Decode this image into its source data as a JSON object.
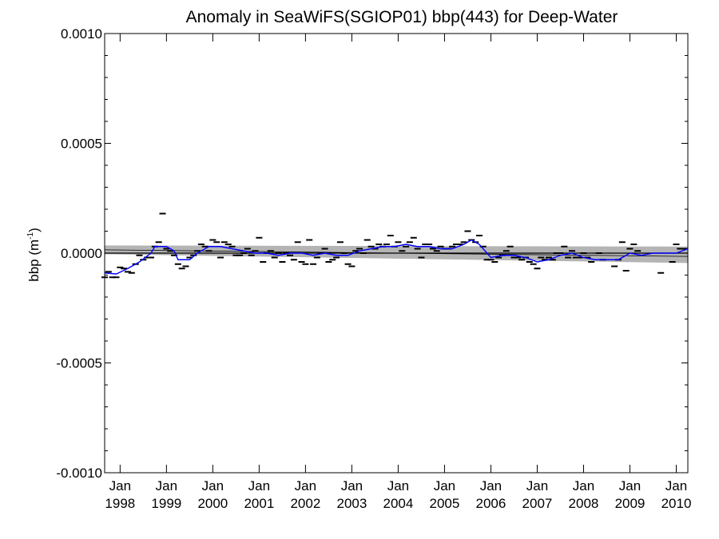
{
  "chart_data": {
    "type": "scatter",
    "title": "Anomaly in SeaWiFS(SGIOP01) bbp(443) for Deep-Water",
    "xlabel": "",
    "ylabel": {
      "base": "bbp (m",
      "sup": "-1",
      "close": ")"
    },
    "ylim": [
      -0.001,
      0.001
    ],
    "xlim": [
      "1997-09",
      "2010-04"
    ],
    "y_ticks": [
      {
        "value": -0.001,
        "label": "-0.0010"
      },
      {
        "value": -0.0005,
        "label": "-0.0005"
      },
      {
        "value": 0.0,
        "label": "0.0000"
      },
      {
        "value": 0.0005,
        "label": "0.0005"
      },
      {
        "value": 0.001,
        "label": "0.0010"
      }
    ],
    "x_ticks": [
      {
        "date": "1998-01",
        "line1": "Jan",
        "line2": "1998"
      },
      {
        "date": "1999-01",
        "line1": "Jan",
        "line2": "1999"
      },
      {
        "date": "2000-01",
        "line1": "Jan",
        "line2": "2000"
      },
      {
        "date": "2001-01",
        "line1": "Jan",
        "line2": "2001"
      },
      {
        "date": "2002-01",
        "line1": "Jan",
        "line2": "2002"
      },
      {
        "date": "2003-01",
        "line1": "Jan",
        "line2": "2003"
      },
      {
        "date": "2004-01",
        "line1": "Jan",
        "line2": "2004"
      },
      {
        "date": "2005-01",
        "line1": "Jan",
        "line2": "2005"
      },
      {
        "date": "2006-01",
        "line1": "Jan",
        "line2": "2006"
      },
      {
        "date": "2007-01",
        "line1": "Jan",
        "line2": "2007"
      },
      {
        "date": "2008-01",
        "line1": "Jan",
        "line2": "2008"
      },
      {
        "date": "2009-01",
        "line1": "Jan",
        "line2": "2009"
      },
      {
        "date": "2010-01",
        "line1": "Jan",
        "line2": "2010"
      }
    ],
    "grid": false,
    "legend": "none",
    "colors": {
      "markers": "#000000",
      "smooth": "#0000ff",
      "band": "#b4b4b4",
      "trend": "#000000",
      "zero": "#000000"
    },
    "monthly_anomalies": [
      {
        "date": "1997-09",
        "y": -0.00011
      },
      {
        "date": "1997-10",
        "y": -8.5e-05
      },
      {
        "date": "1997-11",
        "y": -0.00011
      },
      {
        "date": "1997-12",
        "y": -0.00011
      },
      {
        "date": "1998-01",
        "y": -6.5e-05
      },
      {
        "date": "1998-02",
        "y": -7e-05
      },
      {
        "date": "1998-03",
        "y": -8.5e-05
      },
      {
        "date": "1998-04",
        "y": -9e-05
      },
      {
        "date": "1998-05",
        "y": -5e-05
      },
      {
        "date": "1998-06",
        "y": -1e-05
      },
      {
        "date": "1998-07",
        "y": -3e-05
      },
      {
        "date": "1998-08",
        "y": -2e-05
      },
      {
        "date": "1998-09",
        "y": -2e-05
      },
      {
        "date": "1998-10",
        "y": 3e-05
      },
      {
        "date": "1998-11",
        "y": 5e-05
      },
      {
        "date": "1998-12",
        "y": 0.00018
      },
      {
        "date": "1999-01",
        "y": 2e-05
      },
      {
        "date": "1999-02",
        "y": 1e-05
      },
      {
        "date": "1999-03",
        "y": -1e-05
      },
      {
        "date": "1999-04",
        "y": -5e-05
      },
      {
        "date": "1999-05",
        "y": -7e-05
      },
      {
        "date": "1999-06",
        "y": -6e-05
      },
      {
        "date": "1999-07",
        "y": -2e-05
      },
      {
        "date": "1999-08",
        "y": -1e-05
      },
      {
        "date": "1999-09",
        "y": 1e-05
      },
      {
        "date": "1999-10",
        "y": 4e-05
      },
      {
        "date": "1999-11",
        "y": 3e-05
      },
      {
        "date": "1999-12",
        "y": 1e-05
      },
      {
        "date": "2000-01",
        "y": 6e-05
      },
      {
        "date": "2000-02",
        "y": 5e-05
      },
      {
        "date": "2000-03",
        "y": -2e-05
      },
      {
        "date": "2000-04",
        "y": 5e-05
      },
      {
        "date": "2000-05",
        "y": 4e-05
      },
      {
        "date": "2000-06",
        "y": 3e-05
      },
      {
        "date": "2000-07",
        "y": -1e-05
      },
      {
        "date": "2000-08",
        "y": -1e-05
      },
      {
        "date": "2000-09",
        "y": 0.0
      },
      {
        "date": "2000-10",
        "y": 2e-05
      },
      {
        "date": "2000-11",
        "y": -1e-05
      },
      {
        "date": "2000-12",
        "y": 1e-05
      },
      {
        "date": "2001-01",
        "y": 7e-05
      },
      {
        "date": "2001-02",
        "y": -4e-05
      },
      {
        "date": "2001-03",
        "y": 0.0
      },
      {
        "date": "2001-04",
        "y": 1e-05
      },
      {
        "date": "2001-05",
        "y": -2e-05
      },
      {
        "date": "2001-06",
        "y": 0.0
      },
      {
        "date": "2001-07",
        "y": -4e-05
      },
      {
        "date": "2001-08",
        "y": 0.0
      },
      {
        "date": "2001-09",
        "y": -1e-05
      },
      {
        "date": "2001-10",
        "y": -3e-05
      },
      {
        "date": "2001-11",
        "y": 5e-05
      },
      {
        "date": "2001-12",
        "y": -4e-05
      },
      {
        "date": "2002-01",
        "y": -5e-05
      },
      {
        "date": "2002-02",
        "y": 6e-05
      },
      {
        "date": "2002-03",
        "y": -5e-05
      },
      {
        "date": "2002-04",
        "y": -2e-05
      },
      {
        "date": "2002-05",
        "y": 0.0
      },
      {
        "date": "2002-06",
        "y": 2e-05
      },
      {
        "date": "2002-07",
        "y": -4e-05
      },
      {
        "date": "2002-08",
        "y": -3e-05
      },
      {
        "date": "2002-09",
        "y": -2e-05
      },
      {
        "date": "2002-10",
        "y": 5e-05
      },
      {
        "date": "2002-11",
        "y": 0.0
      },
      {
        "date": "2002-12",
        "y": -5e-05
      },
      {
        "date": "2003-01",
        "y": -6e-05
      },
      {
        "date": "2003-02",
        "y": 1e-05
      },
      {
        "date": "2003-03",
        "y": 2e-05
      },
      {
        "date": "2003-04",
        "y": 0.0
      },
      {
        "date": "2003-05",
        "y": 6e-05
      },
      {
        "date": "2003-06",
        "y": 3e-05
      },
      {
        "date": "2003-07",
        "y": 2e-05
      },
      {
        "date": "2003-08",
        "y": 4e-05
      },
      {
        "date": "2003-09",
        "y": 3e-05
      },
      {
        "date": "2003-10",
        "y": 4e-05
      },
      {
        "date": "2003-11",
        "y": 8e-05
      },
      {
        "date": "2003-12",
        "y": 3e-05
      },
      {
        "date": "2004-01",
        "y": 5e-05
      },
      {
        "date": "2004-02",
        "y": 1e-05
      },
      {
        "date": "2004-03",
        "y": 3e-05
      },
      {
        "date": "2004-04",
        "y": 5e-05
      },
      {
        "date": "2004-05",
        "y": 7e-05
      },
      {
        "date": "2004-06",
        "y": 2e-05
      },
      {
        "date": "2004-07",
        "y": -2e-05
      },
      {
        "date": "2004-08",
        "y": 4e-05
      },
      {
        "date": "2004-09",
        "y": 4e-05
      },
      {
        "date": "2004-10",
        "y": 2e-05
      },
      {
        "date": "2004-11",
        "y": 1e-05
      },
      {
        "date": "2004-12",
        "y": 3e-05
      },
      {
        "date": "2005-01",
        "y": 2e-05
      },
      {
        "date": "2005-02",
        "y": 2e-05
      },
      {
        "date": "2005-03",
        "y": 3e-05
      },
      {
        "date": "2005-04",
        "y": 4e-05
      },
      {
        "date": "2005-05",
        "y": 4e-05
      },
      {
        "date": "2005-06",
        "y": 5e-05
      },
      {
        "date": "2005-07",
        "y": 0.0001
      },
      {
        "date": "2005-08",
        "y": 6e-05
      },
      {
        "date": "2005-09",
        "y": 5e-05
      },
      {
        "date": "2005-10",
        "y": 8e-05
      },
      {
        "date": "2005-11",
        "y": 3e-05
      },
      {
        "date": "2005-12",
        "y": -3e-05
      },
      {
        "date": "2006-01",
        "y": -3e-05
      },
      {
        "date": "2006-02",
        "y": -4e-05
      },
      {
        "date": "2006-03",
        "y": -2e-05
      },
      {
        "date": "2006-04",
        "y": -1e-05
      },
      {
        "date": "2006-05",
        "y": 1e-05
      },
      {
        "date": "2006-06",
        "y": 3e-05
      },
      {
        "date": "2006-07",
        "y": -2e-05
      },
      {
        "date": "2006-08",
        "y": -2e-05
      },
      {
        "date": "2006-09",
        "y": -3e-05
      },
      {
        "date": "2006-10",
        "y": -2e-05
      },
      {
        "date": "2006-11",
        "y": -4e-05
      },
      {
        "date": "2006-12",
        "y": -5e-05
      },
      {
        "date": "2007-01",
        "y": -7e-05
      },
      {
        "date": "2007-02",
        "y": -2e-05
      },
      {
        "date": "2007-03",
        "y": -3e-05
      },
      {
        "date": "2007-04",
        "y": -2e-05
      },
      {
        "date": "2007-05",
        "y": -3e-05
      },
      {
        "date": "2007-06",
        "y": 0.0
      },
      {
        "date": "2007-07",
        "y": 0.0
      },
      {
        "date": "2007-08",
        "y": 3e-05
      },
      {
        "date": "2007-09",
        "y": -2e-05
      },
      {
        "date": "2007-10",
        "y": 1e-05
      },
      {
        "date": "2007-11",
        "y": -2e-05
      },
      {
        "date": "2007-12",
        "y": -2e-05
      },
      {
        "date": "2008-01",
        "y": 0.0
      },
      {
        "date": "2008-02",
        "y": -2e-05
      },
      {
        "date": "2008-03",
        "y": -4e-05
      },
      {
        "date": "2008-05",
        "y": 0.0
      },
      {
        "date": "2008-06",
        "y": -3e-05
      },
      {
        "date": "2008-09",
        "y": -6e-05
      },
      {
        "date": "2008-10",
        "y": -3e-05
      },
      {
        "date": "2008-11",
        "y": 5e-05
      },
      {
        "date": "2008-12",
        "y": -8e-05
      },
      {
        "date": "2009-01",
        "y": 2e-05
      },
      {
        "date": "2009-02",
        "y": 4e-05
      },
      {
        "date": "2009-03",
        "y": 1e-05
      },
      {
        "date": "2009-09",
        "y": -9e-05
      },
      {
        "date": "2009-12",
        "y": -4e-05
      },
      {
        "date": "2010-01",
        "y": 4e-05
      },
      {
        "date": "2010-02",
        "y": 2e-05
      },
      {
        "date": "2010-03",
        "y": 2e-05
      }
    ],
    "smoothed_series": [
      {
        "date": "1997-09",
        "y": -9e-05
      },
      {
        "date": "1997-12",
        "y": -9.5e-05
      },
      {
        "date": "1998-03",
        "y": -7e-05
      },
      {
        "date": "1998-06",
        "y": -4e-05
      },
      {
        "date": "1998-09",
        "y": 0.0
      },
      {
        "date": "1998-10",
        "y": 3e-05
      },
      {
        "date": "1999-01",
        "y": 3e-05
      },
      {
        "date": "1999-03",
        "y": 1e-05
      },
      {
        "date": "1999-04",
        "y": -3e-05
      },
      {
        "date": "1999-07",
        "y": -3e-05
      },
      {
        "date": "1999-09",
        "y": 0.0
      },
      {
        "date": "1999-12",
        "y": 3e-05
      },
      {
        "date": "2000-03",
        "y": 3e-05
      },
      {
        "date": "2000-06",
        "y": 2e-05
      },
      {
        "date": "2000-09",
        "y": 1e-05
      },
      {
        "date": "2000-12",
        "y": 0.0
      },
      {
        "date": "2001-03",
        "y": 0.0
      },
      {
        "date": "2001-06",
        "y": -1e-05
      },
      {
        "date": "2001-09",
        "y": 0.0
      },
      {
        "date": "2001-12",
        "y": 0.0
      },
      {
        "date": "2002-03",
        "y": -1e-05
      },
      {
        "date": "2002-06",
        "y": 0.0
      },
      {
        "date": "2002-09",
        "y": -1e-05
      },
      {
        "date": "2002-12",
        "y": -1e-05
      },
      {
        "date": "2003-03",
        "y": 1e-05
      },
      {
        "date": "2003-06",
        "y": 2e-05
      },
      {
        "date": "2003-09",
        "y": 3e-05
      },
      {
        "date": "2003-12",
        "y": 3e-05
      },
      {
        "date": "2004-03",
        "y": 4e-05
      },
      {
        "date": "2004-06",
        "y": 3e-05
      },
      {
        "date": "2004-09",
        "y": 3e-05
      },
      {
        "date": "2004-12",
        "y": 2e-05
      },
      {
        "date": "2005-03",
        "y": 2e-05
      },
      {
        "date": "2005-06",
        "y": 4e-05
      },
      {
        "date": "2005-08",
        "y": 6e-05
      },
      {
        "date": "2005-10",
        "y": 4e-05
      },
      {
        "date": "2006-01",
        "y": -2e-05
      },
      {
        "date": "2006-04",
        "y": -1e-05
      },
      {
        "date": "2006-07",
        "y": -1e-05
      },
      {
        "date": "2006-10",
        "y": -2e-05
      },
      {
        "date": "2007-01",
        "y": -4e-05
      },
      {
        "date": "2007-04",
        "y": -3e-05
      },
      {
        "date": "2007-07",
        "y": -1e-05
      },
      {
        "date": "2007-10",
        "y": 0.0
      },
      {
        "date": "2008-01",
        "y": -2e-05
      },
      {
        "date": "2008-04",
        "y": -3e-05
      },
      {
        "date": "2008-07",
        "y": -3e-05
      },
      {
        "date": "2008-10",
        "y": -3e-05
      },
      {
        "date": "2009-01",
        "y": 0.0
      },
      {
        "date": "2009-04",
        "y": -1e-05
      },
      {
        "date": "2009-07",
        "y": 0.0
      },
      {
        "date": "2009-10",
        "y": 0.0
      },
      {
        "date": "2010-01",
        "y": 0.0
      },
      {
        "date": "2010-04",
        "y": 2e-05
      }
    ],
    "trend_line": [
      {
        "date": "1997-09",
        "y": 1.5e-05
      },
      {
        "date": "2010-04",
        "y": -1.5e-05
      }
    ],
    "confidence_band": {
      "upper": [
        {
          "date": "1997-09",
          "y": 3.5e-05
        },
        {
          "date": "2010-04",
          "y": 3e-05
        }
      ],
      "lower": [
        {
          "date": "1997-09",
          "y": -5e-06
        },
        {
          "date": "2010-04",
          "y": -4.5e-05
        }
      ]
    },
    "zero_line": 0.0
  }
}
